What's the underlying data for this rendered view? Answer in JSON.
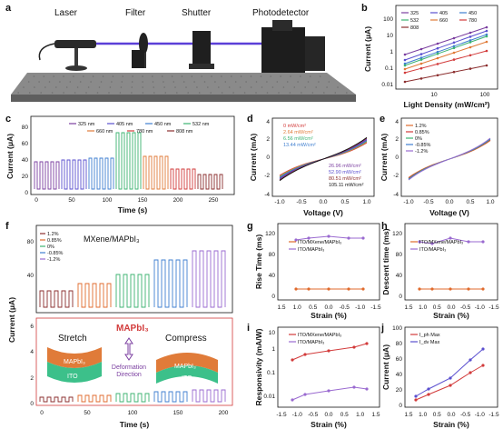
{
  "panels": {
    "a": {
      "letter": "a",
      "components": [
        "Laser",
        "Filter",
        "Shutter",
        "Photodetector"
      ]
    },
    "b": {
      "letter": "b",
      "xlabel": "Light Density (mW/cm²)",
      "ylabel": "Current (μA)",
      "x_ticks": [
        "10",
        "100"
      ],
      "y_ticks": [
        "0.01",
        "0.1",
        "1",
        "10",
        "100"
      ],
      "legend": [
        "325",
        "405",
        "450",
        "532",
        "660",
        "780",
        "808"
      ]
    },
    "c": {
      "letter": "c",
      "xlabel": "Time (s)",
      "ylabel": "Current (μA)",
      "x_ticks": [
        "0",
        "50",
        "100",
        "150",
        "200",
        "250"
      ],
      "y_ticks": [
        "0",
        "20",
        "40",
        "60",
        "80"
      ],
      "legend": [
        "325 nm",
        "405 nm",
        "450 nm",
        "532 nm",
        "660 nm",
        "780 nm",
        "808 nm"
      ]
    },
    "d": {
      "letter": "d",
      "xlabel": "Voltage (V)",
      "ylabel": "Current (mA)",
      "x_ticks": [
        "-1.0",
        "-0.5",
        "0.0",
        "0.5",
        "1.0"
      ],
      "y_ticks": [
        "-4",
        "-2",
        "0",
        "2",
        "4"
      ],
      "legend_left": [
        "0 mW/cm²",
        "2.64 mW/cm²",
        "6.56 mW/cm²",
        "13.44 mW/cm²"
      ],
      "legend_right": [
        "26.96 mW/cm²",
        "52.90 mW/cm²",
        "80.51 mW/cm²",
        "105.11 mW/cm²"
      ]
    },
    "e": {
      "letter": "e",
      "xlabel": "Voltage (V)",
      "ylabel": "Current (mA)",
      "x_ticks": [
        "-1.0",
        "-0.5",
        "0.0",
        "0.5",
        "1.0"
      ],
      "y_ticks": [
        "-4",
        "-2",
        "0",
        "2",
        "4"
      ],
      "legend": [
        "1.2%",
        "0.85%",
        "0%",
        "-0.85%",
        "-1.2%"
      ]
    },
    "f": {
      "letter": "f",
      "ylabel": "Current (μA)",
      "xlabel": "Time (s)",
      "top_title": "MXene/MAPbI₃",
      "x_ticks": [
        "0",
        "50",
        "100",
        "150",
        "200"
      ],
      "y_ticks_top": [
        "40",
        "80"
      ],
      "y_ticks_bottom": [
        "0",
        "2",
        "4",
        "6"
      ],
      "legend": [
        "1.2%",
        "0.85%",
        "0%",
        "-0.85%",
        "-1.2%"
      ],
      "inset_title": "MAPbI₃",
      "stretch": "Stretch",
      "compress": "Compress",
      "layer_top": "MAPbI₃",
      "layer_bottom": "ITO",
      "deformation": "Deformation",
      "direction": "Direction"
    },
    "g": {
      "letter": "g",
      "ylabel": "Rise Time (ms)",
      "xlabel": "Strain (%)",
      "x_ticks": [
        "1.5",
        "1.0",
        "0.5",
        "0.0",
        "-0.5",
        "-1.0",
        "-1.5"
      ],
      "y_ticks": [
        "0",
        "40",
        "80",
        "120"
      ],
      "legend": [
        "ITO/MXene/MAPbI₃",
        "ITO/MAPbI₃"
      ]
    },
    "h": {
      "letter": "h",
      "ylabel": "Descent time (ms)",
      "xlabel": "Strain (%)",
      "x_ticks": [
        "1.5",
        "1.0",
        "0.5",
        "0.0",
        "-0.5",
        "-1.0",
        "-1.5"
      ],
      "y_ticks": [
        "0",
        "40",
        "80",
        "120"
      ],
      "legend": [
        "ITO/MXene/MAPbI₃",
        "ITO/MAPbI₃"
      ]
    },
    "i": {
      "letter": "i",
      "ylabel": "Responsivity (mA/W)",
      "xlabel": "Strain (%)",
      "x_ticks": [
        "-1.5",
        "-1.0",
        "-0.5",
        "0.0",
        "0.5",
        "1.0",
        "1.5"
      ],
      "y_ticks": [
        "0.01",
        "0.1",
        "1",
        "10"
      ],
      "legend": [
        "ITO/MXene/MAPbI₃",
        "ITO/MAPbI₃"
      ]
    },
    "j": {
      "letter": "j",
      "ylabel": "Current (μA)",
      "xlabel": "Strain (%)",
      "x_ticks": [
        "1.5",
        "1.0",
        "0.5",
        "0.0",
        "-0.5",
        "-1.0",
        "-1.5"
      ],
      "y_ticks": [
        "0",
        "20",
        "40",
        "60",
        "80",
        "100"
      ],
      "legend": [
        "I_ph Max",
        "I_dv Max"
      ]
    }
  },
  "colors": {
    "c325": "#7b3fa0",
    "c405": "#5a4fcf",
    "c450": "#3f7fd0",
    "c532": "#3cb371",
    "c660": "#e07b39",
    "c780": "#d23b3b",
    "c808": "#8b2e2e",
    "orange": "#e06a2c",
    "purple": "#9a6ad0",
    "blue": "#3f7fd0",
    "green": "#3cb371",
    "red": "#d23b3b",
    "beam": "#5b3fd8"
  }
}
